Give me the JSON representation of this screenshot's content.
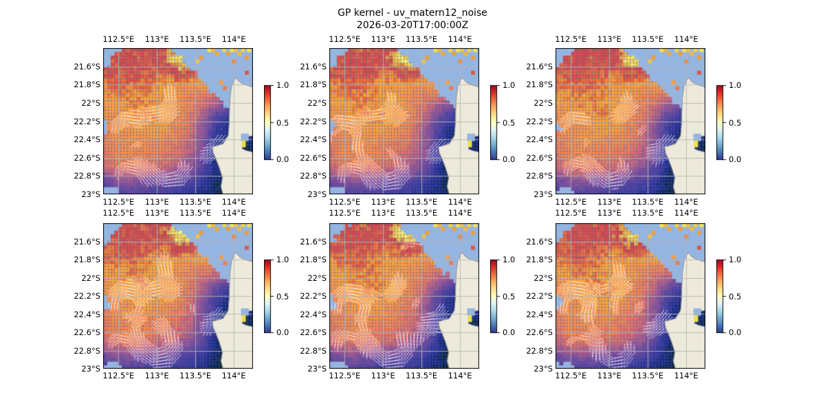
{
  "title": "GP kernel - uv_matern12_noise",
  "subtitle": "2026-03-20T17:00:00Z",
  "chart_data": {
    "type": "heatmap",
    "description": "2x3 grid of six nearly identical geographic heatmap panels (GP kernel field over the North West Cape / Exmouth Gulf region, Western Australia) with white current-vector quiver overlay, land mask, lat/lon gridlines and a vertical colorbar per panel",
    "panels": [
      {
        "id": "row1-col1",
        "seed": 1
      },
      {
        "id": "row1-col2",
        "seed": 2
      },
      {
        "id": "row1-col3",
        "seed": 3
      },
      {
        "id": "row2-col1",
        "seed": 4
      },
      {
        "id": "row2-col2",
        "seed": 5
      },
      {
        "id": "row2-col3",
        "seed": 6
      }
    ],
    "lon_range": [
      112.3,
      114.25
    ],
    "lat_range_south": [
      21.4,
      23.0
    ],
    "lon_ticks": [
      {
        "v": 112.5,
        "label": "112.5°E"
      },
      {
        "v": 113.0,
        "label": "113°E"
      },
      {
        "v": 113.5,
        "label": "113.5°E"
      },
      {
        "v": 114.0,
        "label": "114°E"
      }
    ],
    "lat_ticks": [
      {
        "v": 21.6,
        "label": "21.6°S"
      },
      {
        "v": 21.8,
        "label": "21.8°S"
      },
      {
        "v": 22.0,
        "label": "22°S"
      },
      {
        "v": 22.2,
        "label": "22.2°S"
      },
      {
        "v": 22.4,
        "label": "22.4°S"
      },
      {
        "v": 22.6,
        "label": "22.6°S"
      },
      {
        "v": 22.8,
        "label": "22.8°S"
      },
      {
        "v": 23.0,
        "label": "23°S"
      }
    ],
    "colorbar": {
      "vmin": 0.0,
      "vmax": 1.0,
      "ticks": [
        {
          "v": 1.0,
          "label": "1.0"
        },
        {
          "v": 0.5,
          "label": "0.5"
        },
        {
          "v": 0.0,
          "label": "0.0"
        }
      ],
      "gradient_top_to_bottom": [
        "#a50026",
        "#d73027",
        "#f46d43",
        "#fdae61",
        "#fee090",
        "#ffffbf",
        "#e0f3f8",
        "#abd9e9",
        "#74add1",
        "#4575b4",
        "#313695"
      ]
    },
    "grid_values": [
      [
        0.86,
        0.87,
        0.89,
        0.9,
        0.88,
        0.9,
        0.97,
        0.98,
        0.96,
        0.95,
        0.95,
        0.96,
        0.97
      ],
      [
        0.85,
        0.86,
        0.88,
        0.88,
        0.86,
        0.92,
        0.99,
        0.96,
        0.9,
        0.88,
        0.88,
        0.88,
        0.88
      ],
      [
        0.84,
        0.85,
        0.86,
        0.85,
        0.83,
        0.8,
        0.9,
        0.86,
        0.8,
        0.78,
        0.76,
        0.76,
        0.76
      ],
      [
        0.8,
        0.82,
        0.83,
        0.81,
        0.79,
        0.77,
        0.74,
        0.71,
        0.72,
        0.7,
        0.68,
        0.66,
        0.66
      ],
      [
        0.74,
        0.77,
        0.8,
        0.81,
        0.78,
        0.75,
        0.72,
        0.66,
        0.6,
        0.54,
        0.45,
        0.4,
        0.4
      ],
      [
        0.7,
        0.74,
        0.77,
        0.79,
        0.8,
        0.77,
        0.72,
        0.64,
        0.52,
        0.34,
        0.22,
        0.25,
        0.28
      ],
      [
        0.66,
        0.71,
        0.73,
        0.75,
        0.77,
        0.74,
        0.68,
        0.6,
        0.44,
        0.22,
        0.1,
        0.12,
        0.15
      ],
      [
        0.63,
        0.69,
        0.71,
        0.71,
        0.69,
        0.67,
        0.63,
        0.56,
        0.42,
        0.16,
        0.05,
        0.08,
        0.08
      ],
      [
        0.61,
        0.67,
        0.69,
        0.67,
        0.65,
        0.63,
        0.6,
        0.52,
        0.37,
        0.13,
        0.03,
        0.04,
        0.04
      ],
      [
        0.56,
        0.61,
        0.63,
        0.62,
        0.6,
        0.57,
        0.52,
        0.44,
        0.3,
        0.1,
        0.02,
        0.03,
        0.03
      ],
      [
        0.36,
        0.42,
        0.44,
        0.42,
        0.4,
        0.37,
        0.32,
        0.27,
        0.19,
        0.07,
        0.02,
        0.02,
        0.02
      ],
      [
        0.24,
        0.27,
        0.3,
        0.27,
        0.24,
        0.22,
        0.2,
        0.16,
        0.11,
        0.05,
        0.02,
        0.02,
        0.02
      ]
    ],
    "mask_grid": [
      [
        1,
        1,
        0,
        0,
        0,
        0,
        1,
        1,
        1,
        1,
        1,
        1,
        1
      ],
      [
        1,
        0,
        0,
        0,
        0,
        0,
        0,
        1,
        1,
        1,
        1,
        1,
        1
      ],
      [
        0,
        0,
        0,
        0,
        0,
        0,
        0,
        0,
        1,
        1,
        1,
        1,
        1
      ],
      [
        0,
        0,
        0,
        0,
        0,
        0,
        0,
        0,
        0,
        1,
        1,
        1,
        1
      ],
      [
        0,
        0,
        0,
        0,
        0,
        0,
        0,
        0,
        0,
        0,
        1,
        1,
        1
      ],
      [
        0,
        0,
        0,
        0,
        0,
        0,
        0,
        0,
        0,
        0,
        0,
        0,
        1
      ],
      [
        1,
        0,
        0,
        0,
        0,
        0,
        0,
        0,
        0,
        0,
        0,
        0,
        0
      ],
      [
        0,
        0,
        0,
        0,
        0,
        0,
        0,
        0,
        0,
        0,
        0,
        0,
        0
      ],
      [
        0,
        0,
        0,
        0,
        0,
        0,
        0,
        0,
        0,
        0,
        0,
        0,
        0
      ],
      [
        0,
        0,
        0,
        0,
        0,
        0,
        0,
        0,
        0,
        0,
        0,
        0,
        0
      ],
      [
        0,
        0,
        0,
        0,
        0,
        0,
        0,
        0,
        0,
        0,
        0,
        0,
        0
      ],
      [
        1,
        1,
        0,
        0,
        0,
        0,
        0,
        0,
        0,
        0,
        0,
        0,
        0
      ]
    ],
    "colormap_stops": [
      [
        0.0,
        "#0d2e24"
      ],
      [
        0.05,
        "#12295a"
      ],
      [
        0.12,
        "#232f8c"
      ],
      [
        0.2,
        "#3a3a9e"
      ],
      [
        0.3,
        "#5a449f"
      ],
      [
        0.4,
        "#7f4f9c"
      ],
      [
        0.48,
        "#a55b90"
      ],
      [
        0.56,
        "#cc6b79"
      ],
      [
        0.63,
        "#e77e5e"
      ],
      [
        0.71,
        "#f19350"
      ],
      [
        0.78,
        "#f5a73e"
      ],
      [
        0.82,
        "#e9763f"
      ],
      [
        0.86,
        "#d6524c"
      ],
      [
        0.9,
        "#d0484e"
      ],
      [
        0.94,
        "#e9b647"
      ],
      [
        1.0,
        "#f3ee76"
      ]
    ],
    "land_polygon": [
      [
        0.885,
        0.2
      ],
      [
        0.91,
        0.232
      ],
      [
        0.95,
        0.252
      ],
      [
        1.0,
        0.266
      ],
      [
        1.0,
        0.6
      ],
      [
        0.948,
        0.606
      ],
      [
        0.926,
        0.63
      ],
      [
        0.94,
        0.662
      ],
      [
        0.926,
        0.688
      ],
      [
        0.952,
        0.7
      ],
      [
        1.0,
        0.712
      ],
      [
        1.0,
        1.0
      ],
      [
        0.8,
        1.0
      ],
      [
        0.786,
        0.948
      ],
      [
        0.796,
        0.886
      ],
      [
        0.776,
        0.82
      ],
      [
        0.752,
        0.756
      ],
      [
        0.734,
        0.716
      ],
      [
        0.728,
        0.676
      ],
      [
        0.8,
        0.655
      ],
      [
        0.834,
        0.6
      ],
      [
        0.841,
        0.52
      ],
      [
        0.843,
        0.43
      ],
      [
        0.848,
        0.33
      ],
      [
        0.858,
        0.258
      ]
    ],
    "bay_water_rect": [
      0.92,
      0.585,
      0.052,
      0.05
    ],
    "bay_yellow_cell": [
      0.924,
      0.632,
      0.028,
      0.046
    ],
    "spot_cells": [
      [
        0.695,
        0.0,
        "#f1e25a"
      ],
      [
        0.72,
        0.0,
        "#efb743"
      ],
      [
        0.745,
        0.026,
        "#efa63c"
      ],
      [
        0.795,
        0.0,
        "#f1d24e"
      ],
      [
        0.82,
        0.026,
        "#ee9e3a"
      ],
      [
        0.845,
        0.0,
        "#f1e25a"
      ],
      [
        0.87,
        0.0,
        "#efc447"
      ],
      [
        0.895,
        0.026,
        "#efb743"
      ],
      [
        0.92,
        0.0,
        "#f1cf4c"
      ],
      [
        0.945,
        0.052,
        "#ee9e3a"
      ],
      [
        0.86,
        0.078,
        "#e8883d"
      ],
      [
        0.615,
        0.078,
        "#efc447"
      ],
      [
        0.64,
        0.052,
        "#ee9e3a"
      ],
      [
        0.96,
        0.0,
        "#f1e25a"
      ],
      [
        0.945,
        0.155,
        "#d85a4a"
      ],
      [
        0.775,
        0.22,
        "#ef9f4a"
      ],
      [
        0.8,
        0.26,
        "#e77f52"
      ]
    ],
    "colors": {
      "ocean_mask": "#95b5e1",
      "land": "#eeeadb",
      "land_edge": "#8f8f8f",
      "gridline": "#b4b4b4",
      "frame": "#000000",
      "quiver_dot": "#4664a0",
      "quiver_streak": "#f5f8ff",
      "figure_bg": "#ffffff"
    },
    "quiver": {
      "spacing_px": 4.6,
      "streak_threshold": 0.28,
      "grid_on": true,
      "legend": "none"
    }
  }
}
